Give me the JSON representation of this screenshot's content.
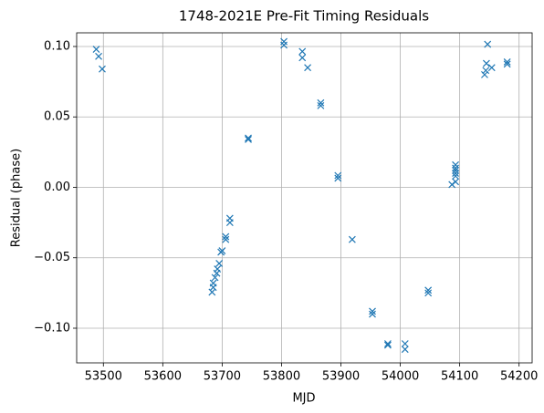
{
  "chart_data": {
    "type": "scatter",
    "title": "1748-2021E Pre-Fit Timing Residuals",
    "xlabel": "MJD",
    "ylabel": "Residual (phase)",
    "color": "#1f77b4",
    "grid": true,
    "xlim": [
      53455,
      54222
    ],
    "ylim": [
      -0.1246,
      0.1097
    ],
    "xticks": [
      53500,
      53600,
      53700,
      53800,
      53900,
      54000,
      54100,
      54200
    ],
    "yticks": [
      {
        "value": -0.1,
        "label": "−0.10"
      },
      {
        "value": -0.05,
        "label": "−0.05"
      },
      {
        "value": 0,
        "label": "0.00"
      },
      {
        "value": 0.05,
        "label": "0.05"
      },
      {
        "value": 0.1,
        "label": "0.10"
      }
    ],
    "x": [
      53488,
      53492,
      53498,
      53683,
      53685,
      53685,
      53688,
      53691,
      53692,
      53695,
      53698,
      53700,
      53706,
      53706,
      53713,
      53713,
      53744,
      53744,
      53804,
      53804,
      53835,
      53835,
      53844,
      53866,
      53866,
      53895,
      53895,
      53919,
      53953,
      53953,
      53979,
      53979,
      54008,
      54008,
      54047,
      54047,
      54087,
      54093,
      54093,
      54093,
      54093,
      54093,
      54093,
      54142,
      54144,
      54145,
      54147,
      54154,
      54180,
      54180
    ],
    "values": [
      0.098,
      0.093,
      0.084,
      -0.0744,
      -0.071,
      -0.068,
      -0.064,
      -0.061,
      -0.058,
      -0.054,
      -0.046,
      -0.045,
      -0.037,
      -0.035,
      -0.025,
      -0.022,
      0.035,
      0.034,
      0.1035,
      0.101,
      0.0965,
      0.092,
      0.085,
      0.06,
      0.058,
      0.0084,
      0.0065,
      -0.037,
      -0.088,
      -0.09,
      -0.111,
      -0.112,
      -0.111,
      -0.115,
      -0.073,
      -0.075,
      0.002,
      0.004,
      0.016,
      0.0136,
      0.012,
      0.01,
      0.008,
      0.08,
      0.083,
      0.088,
      0.1016,
      0.085,
      0.089,
      0.0875
    ]
  }
}
